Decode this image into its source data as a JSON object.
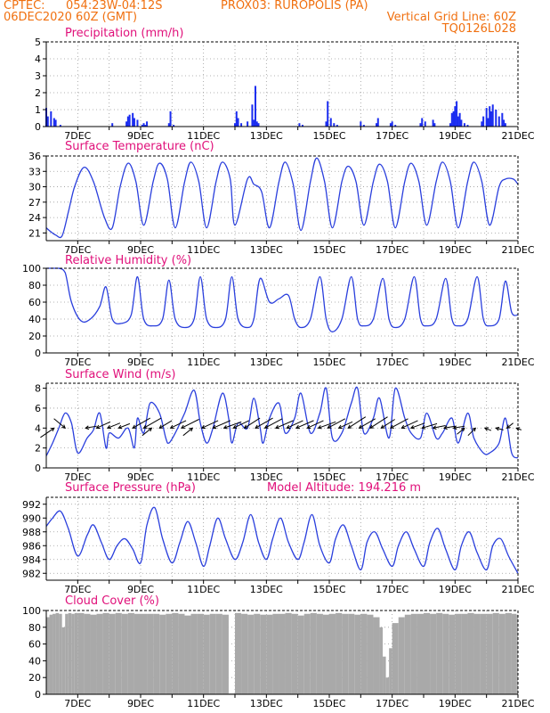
{
  "header": {
    "line1_left": "CPTEC:",
    "line1_mid": "054:23W-04:12S",
    "line1_right": "PROX03: RUROPOLIS (PA)",
    "line2_left": "06DEC2020 60Z (GMT)",
    "line2_right": "Vertical Grid Line: 60Z",
    "line3_right": "TQ0126L028",
    "model_altitude": "Model Altitude: 194.216 m"
  },
  "colors": {
    "header": "#f07010",
    "title": "#e0107a",
    "series": "#2a3fdd",
    "bars": "#1a2cf0",
    "cloud": "#a9a9a9",
    "arrow": "#000000"
  },
  "x_axis": {
    "start": "06DEC2020",
    "end": "21DEC2020",
    "tick_labels": [
      "7DEC",
      "9DEC",
      "11DEC",
      "13DEC",
      "15DEC",
      "17DEC",
      "19DEC",
      "21DEC"
    ]
  },
  "chart_data": [
    {
      "type": "bar",
      "title": "Precipitation (mm/h)",
      "ylim": [
        0,
        5
      ],
      "yticks": [
        0,
        1,
        2,
        3,
        4,
        5
      ],
      "x": [
        6.0,
        6.05,
        6.15,
        6.25,
        6.3,
        6.45,
        8.1,
        8.55,
        8.6,
        8.65,
        8.75,
        8.8,
        8.9,
        9.05,
        9.1,
        9.15,
        9.2,
        9.9,
        9.95,
        10.05,
        12.0,
        12.05,
        12.1,
        12.2,
        12.4,
        12.55,
        12.6,
        12.65,
        12.7,
        12.75,
        14.05,
        14.15,
        14.9,
        14.95,
        15.05,
        15.15,
        15.25,
        16.0,
        16.1,
        16.5,
        16.55,
        16.95,
        17.0,
        17.1,
        17.9,
        17.95,
        18.05,
        18.3,
        18.35,
        18.85,
        18.9,
        18.95,
        19.0,
        19.05,
        19.1,
        19.15,
        19.2,
        19.3,
        19.4,
        19.85,
        19.9,
        20.0,
        20.05,
        20.1,
        20.15,
        20.2,
        20.3,
        20.4,
        20.5,
        20.55,
        20.6
      ],
      "values": [
        1.1,
        0.6,
        0.9,
        0.5,
        0.4,
        0.1,
        0.2,
        0.3,
        0.6,
        0.7,
        0.8,
        0.5,
        0.4,
        0.1,
        0.2,
        0.1,
        0.3,
        0.2,
        0.9,
        0.1,
        0.2,
        0.9,
        0.5,
        0.2,
        0.3,
        1.3,
        0.4,
        2.4,
        0.3,
        0.2,
        0.2,
        0.1,
        0.3,
        1.5,
        0.5,
        0.2,
        0.1,
        0.3,
        0.1,
        0.2,
        0.5,
        0.2,
        0.3,
        0.1,
        0.2,
        0.5,
        0.3,
        0.4,
        0.2,
        0.2,
        0.8,
        0.9,
        1.2,
        1.5,
        0.6,
        0.8,
        0.4,
        0.2,
        0.1,
        0.3,
        0.6,
        1.1,
        0.5,
        1.2,
        0.9,
        1.3,
        1.0,
        0.6,
        0.8,
        0.4,
        0.2
      ],
      "grid": true
    },
    {
      "type": "line",
      "title": "Surface Temperature (nC)",
      "ylim": [
        19.5,
        36
      ],
      "yticks": [
        21,
        24,
        27,
        30,
        33,
        36
      ],
      "x": [
        6.0,
        6.15,
        6.3,
        6.5,
        6.7,
        6.9,
        7.2,
        7.5,
        7.85,
        8.1,
        8.35,
        8.6,
        8.85,
        9.1,
        9.4,
        9.6,
        9.85,
        10.1,
        10.4,
        10.6,
        10.85,
        11.1,
        11.4,
        11.6,
        11.85,
        12.0,
        12.4,
        12.6,
        12.85,
        13.1,
        13.4,
        13.6,
        13.85,
        14.1,
        14.4,
        14.6,
        14.85,
        15.1,
        15.4,
        15.6,
        15.85,
        16.1,
        16.4,
        16.6,
        16.85,
        17.1,
        17.4,
        17.6,
        17.85,
        18.1,
        18.4,
        18.6,
        18.85,
        19.1,
        19.4,
        19.6,
        19.85,
        20.1,
        20.4,
        20.6,
        20.85,
        21.0
      ],
      "values": [
        22.0,
        21.2,
        20.6,
        20.4,
        25.0,
        30.0,
        33.8,
        31.0,
        24.0,
        22.0,
        30.0,
        34.6,
        31.0,
        22.5,
        31.0,
        34.6,
        31.5,
        22.0,
        31.0,
        34.8,
        31.0,
        22.0,
        31.0,
        34.8,
        31.5,
        22.5,
        31.5,
        30.5,
        29.0,
        22.0,
        31.0,
        34.8,
        30.5,
        21.5,
        31.0,
        35.6,
        31.0,
        22.0,
        31.0,
        34.0,
        31.0,
        22.5,
        31.0,
        34.4,
        31.0,
        22.0,
        31.0,
        34.6,
        31.0,
        22.5,
        31.0,
        34.8,
        31.0,
        22.0,
        31.0,
        34.8,
        31.0,
        22.5,
        30.0,
        31.5,
        31.5,
        30.5
      ],
      "grid": true
    },
    {
      "type": "line",
      "title": "Relative Humidity (%)",
      "ylim": [
        0,
        100
      ],
      "yticks": [
        0,
        20,
        40,
        60,
        80,
        100
      ],
      "x": [
        6.0,
        6.2,
        6.4,
        6.6,
        6.8,
        7.1,
        7.4,
        7.7,
        7.9,
        8.1,
        8.4,
        8.7,
        8.9,
        9.1,
        9.4,
        9.7,
        9.9,
        10.1,
        10.4,
        10.7,
        10.9,
        11.1,
        11.4,
        11.7,
        11.9,
        12.1,
        12.4,
        12.6,
        12.8,
        13.1,
        13.4,
        13.7,
        13.9,
        14.1,
        14.4,
        14.7,
        14.9,
        15.1,
        15.4,
        15.7,
        15.9,
        16.1,
        16.4,
        16.7,
        16.9,
        17.1,
        17.4,
        17.7,
        17.9,
        18.1,
        18.4,
        18.7,
        18.9,
        19.1,
        19.4,
        19.7,
        19.9,
        20.1,
        20.4,
        20.6,
        20.8,
        21.0
      ],
      "values": [
        100,
        100,
        100,
        95,
        60,
        38,
        40,
        55,
        78,
        40,
        35,
        45,
        90,
        40,
        32,
        40,
        86,
        40,
        30,
        40,
        90,
        40,
        30,
        40,
        90,
        40,
        30,
        40,
        88,
        60,
        64,
        68,
        40,
        30,
        40,
        90,
        40,
        25,
        40,
        90,
        40,
        32,
        40,
        88,
        40,
        30,
        40,
        90,
        40,
        32,
        40,
        88,
        40,
        32,
        40,
        90,
        40,
        32,
        40,
        85,
        48,
        45
      ],
      "grid": true
    },
    {
      "type": "line",
      "title": "Surface Wind (m/s)",
      "ylim": [
        0,
        8.5
      ],
      "yticks": [
        0,
        2,
        4,
        6,
        8
      ],
      "x": [
        6.0,
        6.2,
        6.4,
        6.6,
        6.8,
        7.0,
        7.3,
        7.5,
        7.7,
        7.9,
        8.0,
        8.3,
        8.6,
        8.8,
        8.9,
        9.1,
        9.3,
        9.6,
        9.8,
        9.9,
        10.1,
        10.4,
        10.7,
        10.9,
        11.1,
        11.3,
        11.6,
        11.8,
        11.9,
        12.1,
        12.4,
        12.6,
        12.8,
        12.9,
        13.1,
        13.4,
        13.6,
        13.9,
        14.1,
        14.4,
        14.7,
        14.9,
        15.1,
        15.4,
        15.7,
        15.9,
        16.1,
        16.4,
        16.6,
        16.9,
        17.1,
        17.4,
        17.6,
        17.9,
        18.1,
        18.4,
        18.6,
        18.9,
        19.1,
        19.4,
        19.6,
        19.9,
        20.1,
        20.4,
        20.6,
        20.8,
        21.0
      ],
      "values": [
        1.2,
        2.5,
        4.0,
        5.5,
        4.5,
        1.5,
        3.0,
        3.8,
        5.5,
        2.0,
        3.5,
        3.0,
        4.0,
        2.0,
        5.0,
        3.5,
        6.5,
        5.5,
        3.0,
        2.5,
        3.5,
        5.5,
        7.8,
        4.5,
        2.5,
        4.0,
        7.5,
        5.0,
        2.5,
        4.5,
        4.0,
        7.0,
        4.0,
        2.5,
        5.0,
        6.5,
        3.5,
        5.0,
        7.5,
        3.5,
        5.5,
        8.0,
        3.0,
        3.5,
        6.5,
        8.0,
        3.5,
        5.0,
        7.0,
        3.0,
        8.0,
        5.0,
        3.5,
        3.0,
        5.5,
        3.0,
        3.5,
        5.0,
        2.5,
        5.5,
        3.0,
        1.5,
        1.5,
        2.5,
        5.0,
        1.5,
        1.0
      ],
      "arrows": {
        "x": [
          6.25,
          6.6,
          7.25,
          7.6,
          7.95,
          8.3,
          8.75,
          9.1,
          9.35,
          9.6,
          9.95,
          10.3,
          10.65,
          10.95,
          11.3,
          11.65,
          11.95,
          12.3,
          12.65,
          12.95,
          13.3,
          13.65,
          13.95,
          14.3,
          14.65,
          14.95,
          15.3,
          15.6,
          15.95,
          16.3,
          16.65,
          16.95,
          17.3,
          17.6,
          17.95,
          18.3,
          18.65,
          18.95,
          19.3,
          19.65,
          19.95,
          20.3,
          20.65,
          20.95
        ],
        "u": [
          -2.2,
          -1.8,
          1.8,
          2.2,
          2.0,
          1.8,
          2.8,
          2.8,
          -1.5,
          2.0,
          2.5,
          2.8,
          -1.5,
          2.6,
          2.8,
          2.8,
          2.5,
          2.5,
          2.8,
          2.8,
          2.8,
          2.6,
          2.8,
          2.6,
          2.8,
          2.8,
          2.2,
          2.8,
          2.6,
          2.8,
          2.2,
          2.8,
          2.6,
          2.2,
          2.4,
          2.0,
          1.8,
          1.8,
          -1.2,
          -1.2,
          1.0,
          1.2,
          1.0,
          0.8
        ],
        "v": [
          -1.5,
          1.5,
          0.3,
          1.0,
          0.8,
          0.7,
          1.6,
          1.6,
          -1.2,
          1.2,
          1.2,
          1.4,
          -1.2,
          1.2,
          1.2,
          1.0,
          1.2,
          1.6,
          1.6,
          1.5,
          1.2,
          1.2,
          1.2,
          1.2,
          1.0,
          1.5,
          1.0,
          1.8,
          1.5,
          1.8,
          1.4,
          1.5,
          1.2,
          0.8,
          0.7,
          0.4,
          0.3,
          0.3,
          -1.0,
          -1.2,
          -0.4,
          -0.3,
          0.8,
          -0.3
        ]
      },
      "grid": true
    },
    {
      "type": "line",
      "title": "Surface Pressure (hPa)",
      "ylim": [
        981,
        993
      ],
      "yticks": [
        982,
        984,
        986,
        988,
        990,
        992
      ],
      "x": [
        6.0,
        6.2,
        6.45,
        6.7,
        7.0,
        7.3,
        7.5,
        7.75,
        8.0,
        8.25,
        8.5,
        8.75,
        9.0,
        9.2,
        9.45,
        9.7,
        10.0,
        10.25,
        10.5,
        10.75,
        11.0,
        11.2,
        11.45,
        11.7,
        12.0,
        12.25,
        12.5,
        12.75,
        13.0,
        13.2,
        13.45,
        13.7,
        14.0,
        14.2,
        14.45,
        14.7,
        15.0,
        15.2,
        15.45,
        15.7,
        16.0,
        16.2,
        16.45,
        16.7,
        17.0,
        17.2,
        17.45,
        17.7,
        18.0,
        18.2,
        18.45,
        18.7,
        19.0,
        19.2,
        19.45,
        19.7,
        20.0,
        20.2,
        20.45,
        20.7,
        21.0
      ],
      "values": [
        988.8,
        990.0,
        991.0,
        988.5,
        984.5,
        987.5,
        989.0,
        986.5,
        984.0,
        986.0,
        987.0,
        985.5,
        983.5,
        989.0,
        991.5,
        987.0,
        983.5,
        986.5,
        989.5,
        986.5,
        983.0,
        986.0,
        990.0,
        987.0,
        984.0,
        986.5,
        990.5,
        986.5,
        984.0,
        987.0,
        990.0,
        986.5,
        984.0,
        986.5,
        990.5,
        986.0,
        983.5,
        987.0,
        989.0,
        986.0,
        982.5,
        986.5,
        988.0,
        985.5,
        983.0,
        986.0,
        988.0,
        985.5,
        983.0,
        986.5,
        988.5,
        985.5,
        982.5,
        986.0,
        988.0,
        985.0,
        982.5,
        986.0,
        987.0,
        984.5,
        982.0
      ],
      "grid": true
    },
    {
      "type": "bar",
      "title": "Cloud Cover (%)",
      "ylim": [
        0,
        100
      ],
      "yticks": [
        0,
        20,
        40,
        60,
        80,
        100
      ],
      "x": [
        6.0,
        6.1,
        6.2,
        6.3,
        6.4,
        6.5,
        6.6,
        6.7,
        6.8,
        6.9,
        7.0,
        7.2,
        7.4,
        7.6,
        7.8,
        8.0,
        8.2,
        8.4,
        8.6,
        8.8,
        9.0,
        9.2,
        9.4,
        9.6,
        9.8,
        10.0,
        10.2,
        10.4,
        10.6,
        10.8,
        11.0,
        11.2,
        11.4,
        11.6,
        11.8,
        12.0,
        12.2,
        12.4,
        12.6,
        12.8,
        13.0,
        13.2,
        13.4,
        13.6,
        13.8,
        14.0,
        14.2,
        14.4,
        14.6,
        14.8,
        15.0,
        15.2,
        15.4,
        15.6,
        15.8,
        16.0,
        16.2,
        16.4,
        16.6,
        16.7,
        16.8,
        16.9,
        17.0,
        17.2,
        17.4,
        17.6,
        17.8,
        18.0,
        18.2,
        18.4,
        18.6,
        18.8,
        19.0,
        19.2,
        19.4,
        19.6,
        19.8,
        20.0,
        20.2,
        20.4,
        20.6,
        20.8,
        20.95
      ],
      "values": [
        92,
        95,
        96,
        97,
        96,
        80,
        96,
        97,
        96,
        97,
        97,
        96,
        95,
        96,
        97,
        96,
        97,
        96,
        97,
        96,
        96,
        96,
        96,
        95,
        96,
        97,
        96,
        94,
        96,
        96,
        95,
        96,
        96,
        95,
        1,
        97,
        96,
        95,
        96,
        95,
        95,
        96,
        96,
        97,
        96,
        94,
        96,
        97,
        96,
        95,
        96,
        97,
        96,
        96,
        95,
        96,
        95,
        92,
        80,
        45,
        20,
        55,
        85,
        92,
        95,
        96,
        96,
        97,
        96,
        97,
        96,
        95,
        96,
        96,
        97,
        96,
        96,
        96,
        97,
        96,
        97,
        96,
        95
      ],
      "grid": true
    }
  ]
}
